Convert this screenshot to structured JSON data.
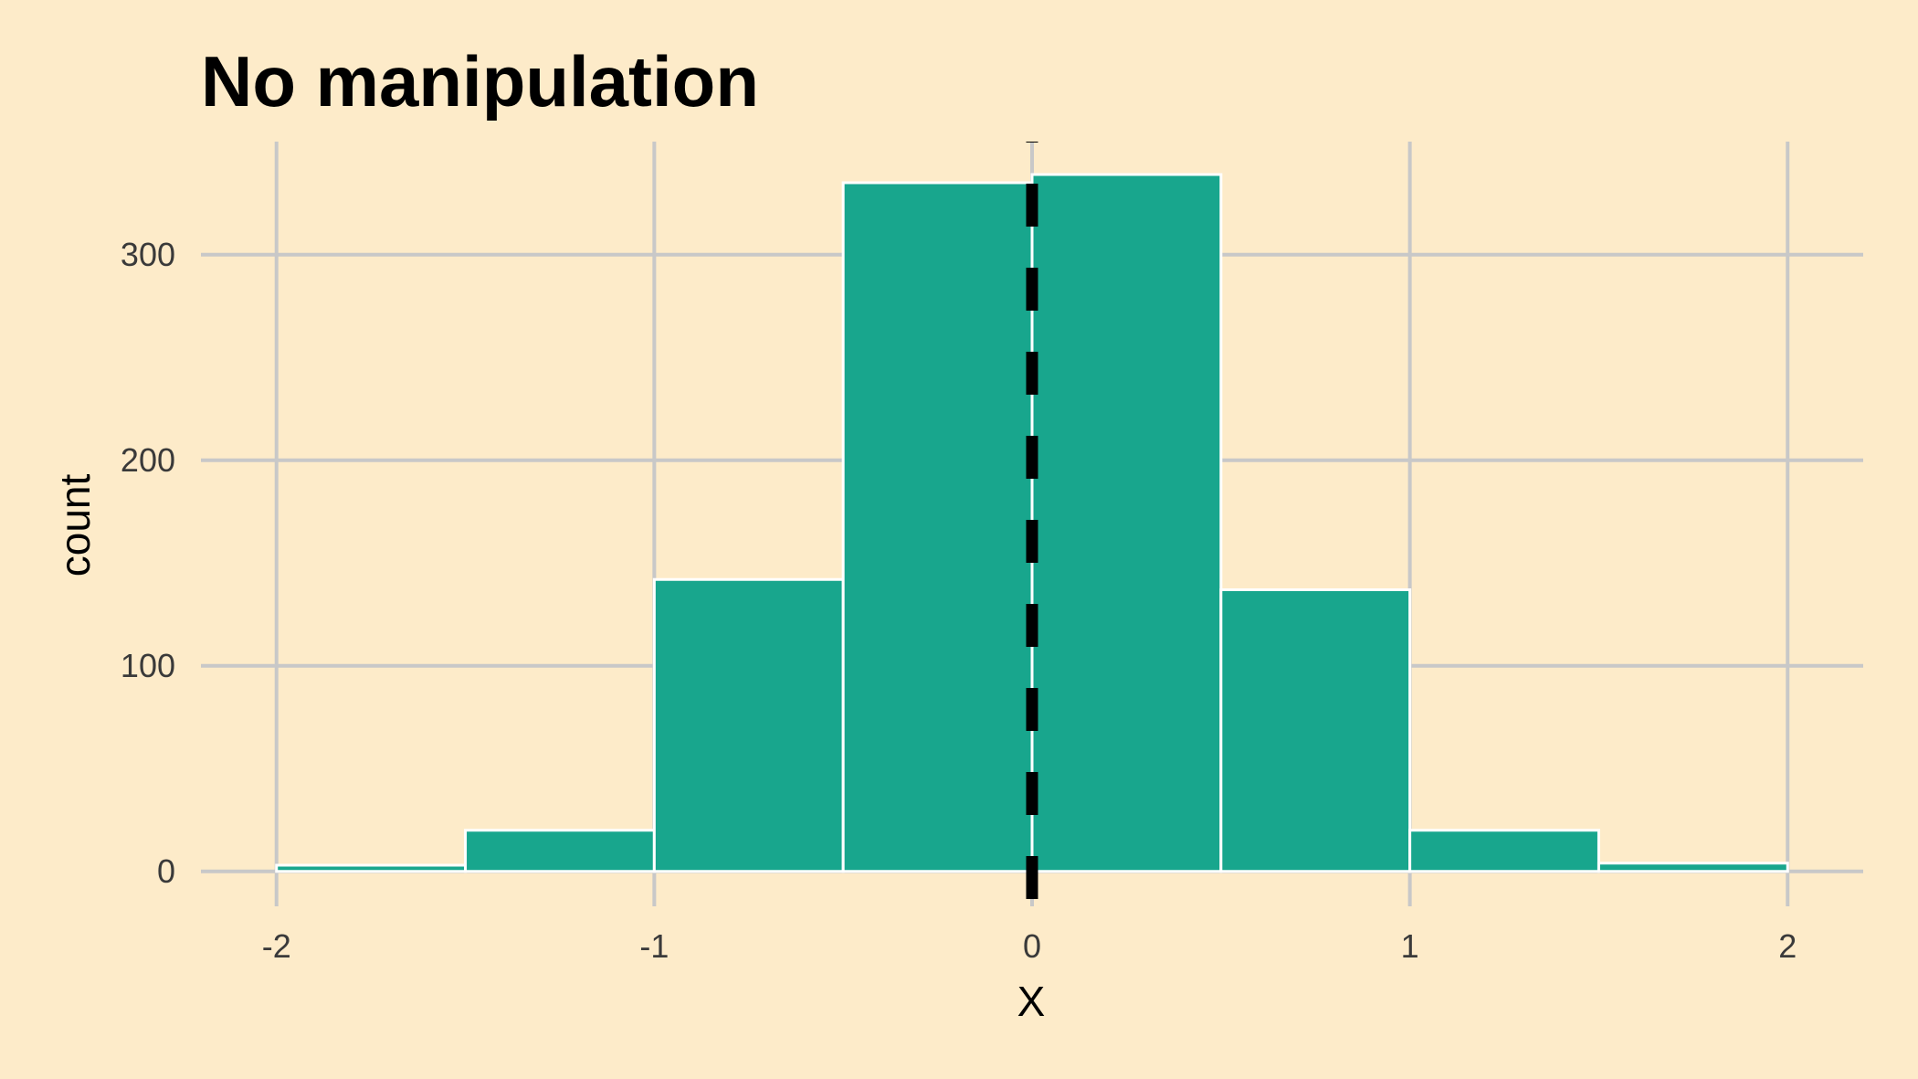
{
  "chart_data": {
    "type": "bar",
    "title": "No manipulation",
    "xlabel": "X",
    "ylabel": "count",
    "bins": [
      {
        "x0": -2.0,
        "x1": -1.5,
        "count": 3
      },
      {
        "x0": -1.5,
        "x1": -1.0,
        "count": 20
      },
      {
        "x0": -1.0,
        "x1": -0.5,
        "count": 142
      },
      {
        "x0": -0.5,
        "x1": 0.0,
        "count": 335
      },
      {
        "x0": 0.0,
        "x1": 0.5,
        "count": 339
      },
      {
        "x0": 0.5,
        "x1": 1.0,
        "count": 137
      },
      {
        "x0": 1.0,
        "x1": 1.5,
        "count": 20
      },
      {
        "x0": 1.5,
        "x1": 2.0,
        "count": 4
      }
    ],
    "x_ticks": [
      -2,
      -1,
      0,
      1,
      2
    ],
    "x_tick_labels": [
      "-2",
      "-1",
      "0",
      "1",
      "2"
    ],
    "y_ticks": [
      0,
      100,
      200,
      300
    ],
    "y_tick_labels": [
      "0",
      "100",
      "200",
      "300"
    ],
    "xlim": [
      -2.2,
      2.2
    ],
    "ylim": [
      -17,
      355
    ],
    "reference_line": {
      "x": 0,
      "style": "dashed",
      "color": "#000000"
    },
    "grid": true,
    "colors": {
      "background": "#fdebc9",
      "bar_fill": "#18a68d",
      "bar_outline": "#ffffff",
      "grid": "#c8c8c8"
    }
  }
}
